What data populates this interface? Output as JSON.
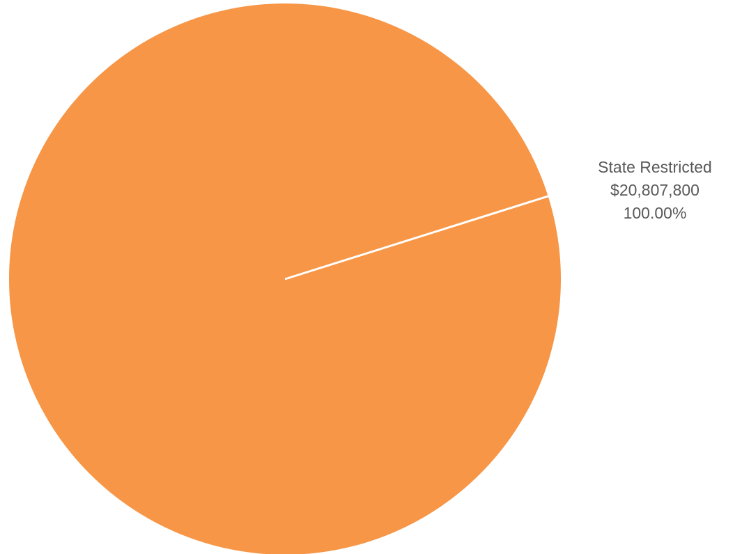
{
  "chart_data": {
    "type": "pie",
    "title": "",
    "slices": [
      {
        "label": "State Restricted",
        "value_text": "$20,807,800",
        "value": 20807800,
        "percent_text": "100.00%",
        "percent": 100.0,
        "color": "#f79646"
      }
    ],
    "slice_border_color": "#ffffff",
    "label_color": "#595959"
  }
}
